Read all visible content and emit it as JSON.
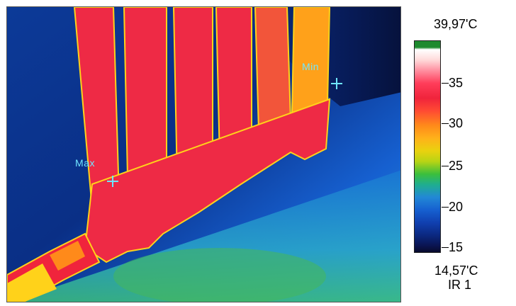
{
  "thermal_image": {
    "markers": {
      "max_label": "Max",
      "min_label": "Min"
    }
  },
  "scale": {
    "max_value": "39,97'C",
    "min_value": "14,57'C",
    "source": "IR 1",
    "ticks": [
      "35",
      "30",
      "25",
      "20",
      "15"
    ],
    "palette": "iron/rainbow"
  },
  "colors": {
    "background_blue": "#0d3fa8",
    "radiator_red": "#f0243c",
    "marker_cyan": "#6fe6ff"
  }
}
